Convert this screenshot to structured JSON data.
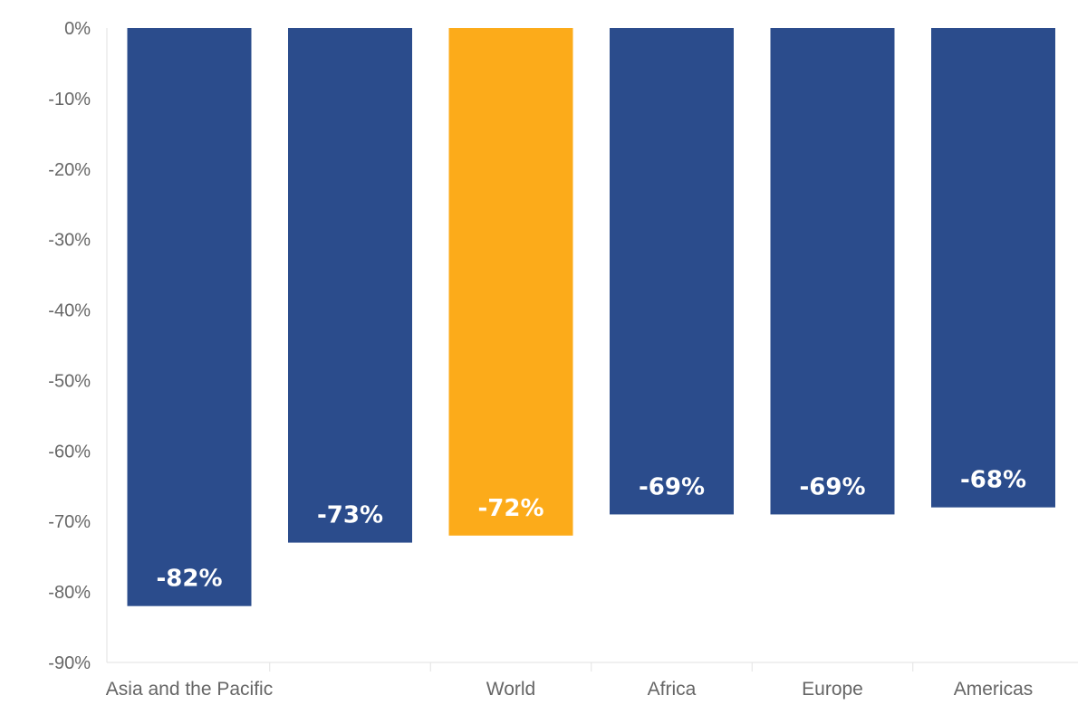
{
  "chart_data": {
    "type": "bar",
    "title": "",
    "xlabel": "",
    "ylabel": "",
    "categories": [
      "Asia and the Pacific",
      "",
      "World",
      "Africa",
      "Europe",
      "Americas"
    ],
    "values": [
      -82,
      -73,
      -72,
      -69,
      -69,
      -68
    ],
    "data_labels": [
      "-82%",
      "-73%",
      "-72%",
      "-69%",
      "-69%",
      "-68%"
    ],
    "highlight_index": 2,
    "ylim": [
      -90,
      0
    ],
    "yticks": [
      0,
      -10,
      -20,
      -30,
      -40,
      -50,
      -60,
      -70,
      -80,
      -90
    ],
    "ytick_labels": [
      "0%",
      "-10%",
      "-20%",
      "-30%",
      "-40%",
      "-50%",
      "-60%",
      "-70%",
      "-80%",
      "-90%"
    ],
    "grid": false,
    "legend": "none",
    "colors": {
      "bar": "#2b4c8c",
      "highlight": "#fcab1a",
      "tick_text": "#666666",
      "axis": "#e2e2e2"
    }
  }
}
